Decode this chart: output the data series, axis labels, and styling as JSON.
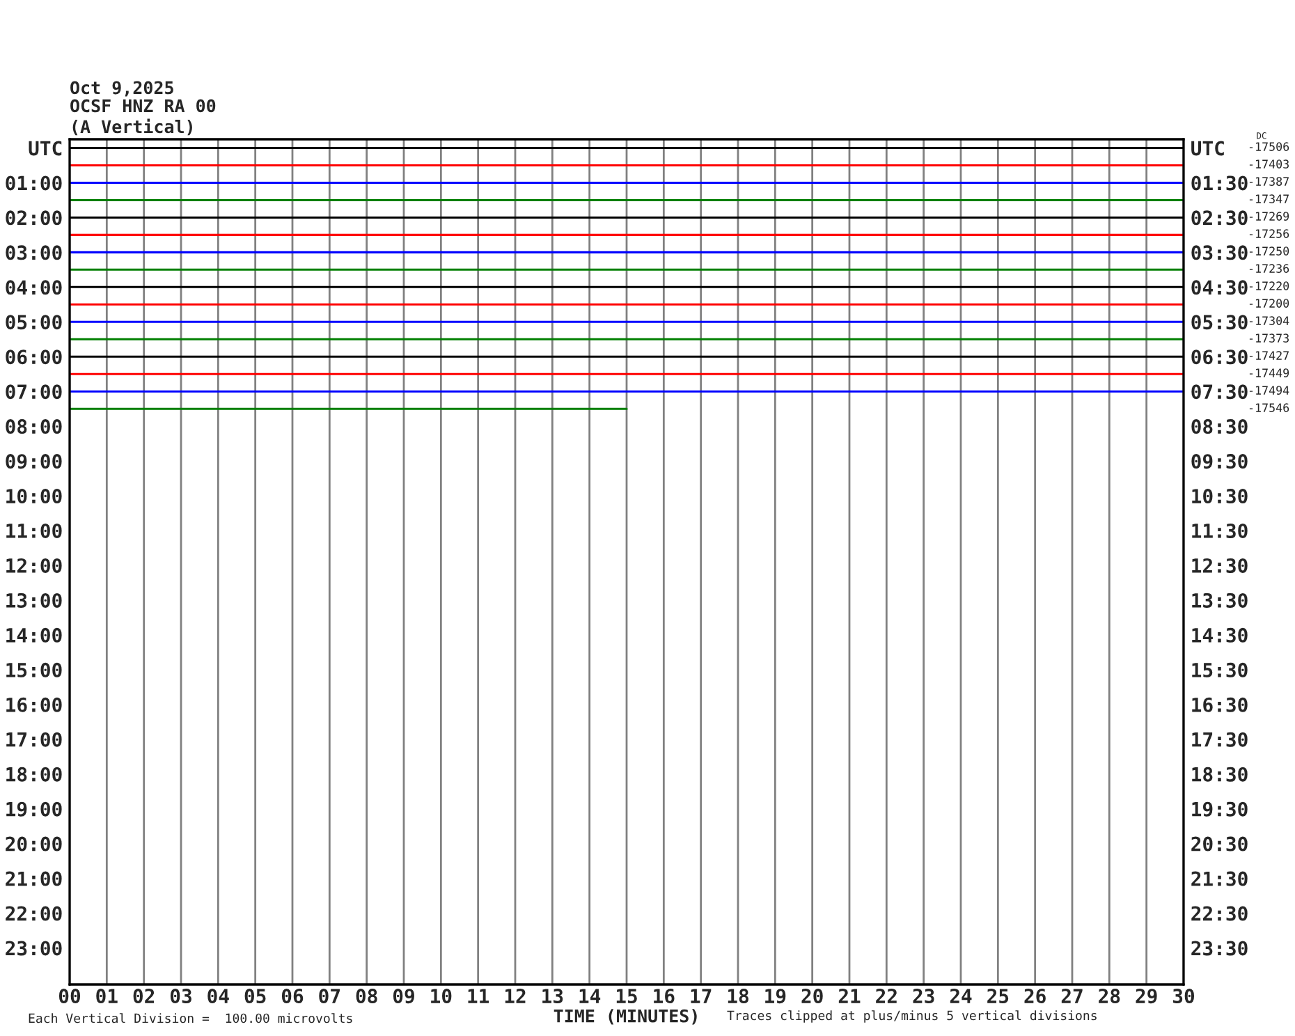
{
  "chart_data": {
    "type": "line",
    "title": "Oct 9,2025",
    "subtitle": "OCSF HNZ RA 00\n(A Vertical)",
    "xlabel": "TIME (MINUTES)",
    "xlim": [
      0,
      30
    ],
    "xticks": [
      {
        "value": 0,
        "label": "00"
      },
      {
        "value": 1,
        "label": "01"
      },
      {
        "value": 2,
        "label": "02"
      },
      {
        "value": 3,
        "label": "03"
      },
      {
        "value": 4,
        "label": "04"
      },
      {
        "value": 5,
        "label": "05"
      },
      {
        "value": 6,
        "label": "06"
      },
      {
        "value": 7,
        "label": "07"
      },
      {
        "value": 8,
        "label": "08"
      },
      {
        "value": 9,
        "label": "09"
      },
      {
        "value": 10,
        "label": "10"
      },
      {
        "value": 11,
        "label": "11"
      },
      {
        "value": 12,
        "label": "12"
      },
      {
        "value": 13,
        "label": "13"
      },
      {
        "value": 14,
        "label": "14"
      },
      {
        "value": 15,
        "label": "15"
      },
      {
        "value": 16,
        "label": "16"
      },
      {
        "value": 17,
        "label": "17"
      },
      {
        "value": 18,
        "label": "18"
      },
      {
        "value": 19,
        "label": "19"
      },
      {
        "value": 20,
        "label": "20"
      },
      {
        "value": 21,
        "label": "21"
      },
      {
        "value": 22,
        "label": "22"
      },
      {
        "value": 23,
        "label": "23"
      },
      {
        "value": 24,
        "label": "24"
      },
      {
        "value": 25,
        "label": "25"
      },
      {
        "value": 26,
        "label": "26"
      },
      {
        "value": 27,
        "label": "27"
      },
      {
        "value": 28,
        "label": "28"
      },
      {
        "value": 29,
        "label": "29"
      },
      {
        "value": 30,
        "label": "30"
      }
    ],
    "ylim": [
      24.05,
      -0.25
    ],
    "yticks": [
      {
        "value": 0,
        "label": "UTC"
      },
      {
        "value": 1,
        "label": "01:00"
      },
      {
        "value": 2,
        "label": "02:00"
      },
      {
        "value": 3,
        "label": "03:00"
      },
      {
        "value": 4,
        "label": "04:00"
      },
      {
        "value": 5,
        "label": "05:00"
      },
      {
        "value": 6,
        "label": "06:00"
      },
      {
        "value": 7,
        "label": "07:00"
      },
      {
        "value": 8,
        "label": "08:00"
      },
      {
        "value": 9,
        "label": "09:00"
      },
      {
        "value": 10,
        "label": "10:00"
      },
      {
        "value": 11,
        "label": "11:00"
      },
      {
        "value": 12,
        "label": "12:00"
      },
      {
        "value": 13,
        "label": "13:00"
      },
      {
        "value": 14,
        "label": "14:00"
      },
      {
        "value": 15,
        "label": "15:00"
      },
      {
        "value": 16,
        "label": "16:00"
      },
      {
        "value": 17,
        "label": "17:00"
      },
      {
        "value": 18,
        "label": "18:00"
      },
      {
        "value": 19,
        "label": "19:00"
      },
      {
        "value": 20,
        "label": "20:00"
      },
      {
        "value": 21,
        "label": "21:00"
      },
      {
        "value": 22,
        "label": "22:00"
      },
      {
        "value": 23,
        "label": "23:00"
      }
    ],
    "y2lim": [
      24.55,
      0.25
    ],
    "y2ticks": [
      {
        "value": 0.5,
        "label": "UTC"
      },
      {
        "value": 1.5,
        "label": "01:30"
      },
      {
        "value": 2.5,
        "label": "02:30"
      },
      {
        "value": 3.5,
        "label": "03:30"
      },
      {
        "value": 4.5,
        "label": "04:30"
      },
      {
        "value": 5.5,
        "label": "05:30"
      },
      {
        "value": 6.5,
        "label": "06:30"
      },
      {
        "value": 7.5,
        "label": "07:30"
      },
      {
        "value": 8.5,
        "label": "08:30"
      },
      {
        "value": 9.5,
        "label": "09:30"
      },
      {
        "value": 10.5,
        "label": "10:30"
      },
      {
        "value": 11.5,
        "label": "11:30"
      },
      {
        "value": 12.5,
        "label": "12:30"
      },
      {
        "value": 13.5,
        "label": "13:30"
      },
      {
        "value": 14.5,
        "label": "14:30"
      },
      {
        "value": 15.5,
        "label": "15:30"
      },
      {
        "value": 16.5,
        "label": "16:30"
      },
      {
        "value": 17.5,
        "label": "17:30"
      },
      {
        "value": 18.5,
        "label": "18:30"
      },
      {
        "value": 19.5,
        "label": "19:30"
      },
      {
        "value": 20.5,
        "label": "20:30"
      },
      {
        "value": 21.5,
        "label": "21:30"
      },
      {
        "value": 22.5,
        "label": "22:30"
      },
      {
        "value": 23.5,
        "label": "23:30"
      }
    ],
    "grid": "x",
    "legend": false,
    "series": [
      {
        "color": "#000000",
        "x": [
          0,
          30
        ],
        "values": [
          0,
          0
        ]
      },
      {
        "color": "#ff0000",
        "x": [
          0,
          30
        ],
        "values": [
          0.5,
          0.5
        ]
      },
      {
        "color": "#0000ff",
        "x": [
          0,
          30
        ],
        "values": [
          1,
          1
        ]
      },
      {
        "color": "#007f00",
        "x": [
          0,
          30
        ],
        "values": [
          1.5,
          1.5
        ]
      },
      {
        "color": "#000000",
        "x": [
          0,
          30
        ],
        "values": [
          2,
          2
        ]
      },
      {
        "color": "#ff0000",
        "x": [
          0,
          30
        ],
        "values": [
          2.5,
          2.5
        ]
      },
      {
        "color": "#0000ff",
        "x": [
          0,
          30
        ],
        "values": [
          3,
          3
        ]
      },
      {
        "color": "#007f00",
        "x": [
          0,
          30
        ],
        "values": [
          3.5,
          3.5
        ]
      },
      {
        "color": "#000000",
        "x": [
          0,
          30
        ],
        "values": [
          4,
          4
        ]
      },
      {
        "color": "#ff0000",
        "x": [
          0,
          30
        ],
        "values": [
          4.5,
          4.5
        ]
      },
      {
        "color": "#0000ff",
        "x": [
          0,
          30
        ],
        "values": [
          5,
          5
        ]
      },
      {
        "color": "#007f00",
        "x": [
          0,
          30
        ],
        "values": [
          5.5,
          5.5
        ]
      },
      {
        "color": "#000000",
        "x": [
          0,
          30
        ],
        "values": [
          6,
          6
        ]
      },
      {
        "color": "#ff0000",
        "x": [
          0,
          30
        ],
        "values": [
          6.5,
          6.5
        ]
      },
      {
        "color": "#0000ff",
        "x": [
          0,
          30
        ],
        "values": [
          7,
          7
        ]
      },
      {
        "color": "#007f00",
        "x": [
          0,
          15
        ],
        "values": [
          7.5,
          7.5
        ]
      }
    ],
    "annotations": [
      "-17506\n-17403\n-17387\n-17347\n-17269\n-17256\n-17250\n-17236\n-17220\n-17200\n-17304\n-17373\n-17427\n-17449\n-17494\n-17546",
      "DC",
      "Each Vertical Division =  100.00 microvolts",
      "Traces clipped at plus/minus 5 vertical divisions"
    ]
  }
}
